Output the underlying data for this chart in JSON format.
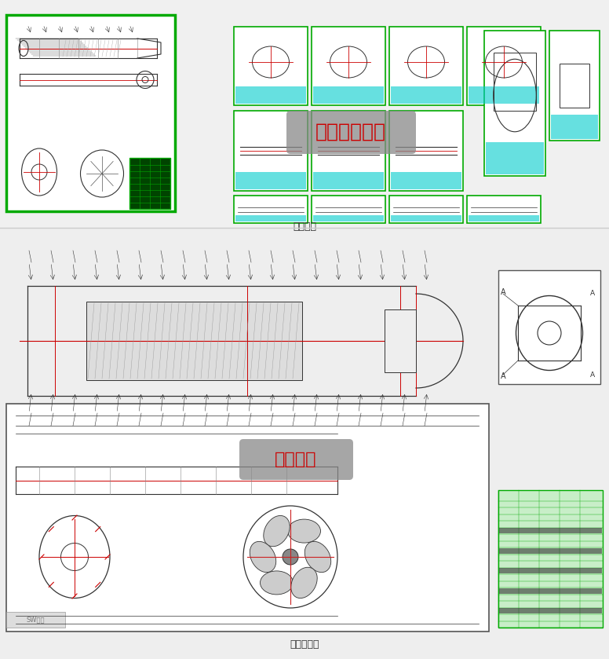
{
  "bg_color": "#f0f0f0",
  "panel1_bg": "#ffffff",
  "panel2_bg": "#ffffff",
  "cad_bg": "#ffffff",
  "label1": "全部图纸",
  "label2": "水下机器人",
  "text1": "全套二维图纸",
  "text2": "总装配图",
  "text1_color": "#cc0000",
  "text2_color": "#cc0000",
  "green_border": "#00aa00",
  "cad_line": "#333333",
  "red_line": "#cc0000",
  "cyan_accent": "#00cccc",
  "grid_color": "#cccccc",
  "mini_cad_bg": "#e8f4e8",
  "section_divider": "#cccccc"
}
